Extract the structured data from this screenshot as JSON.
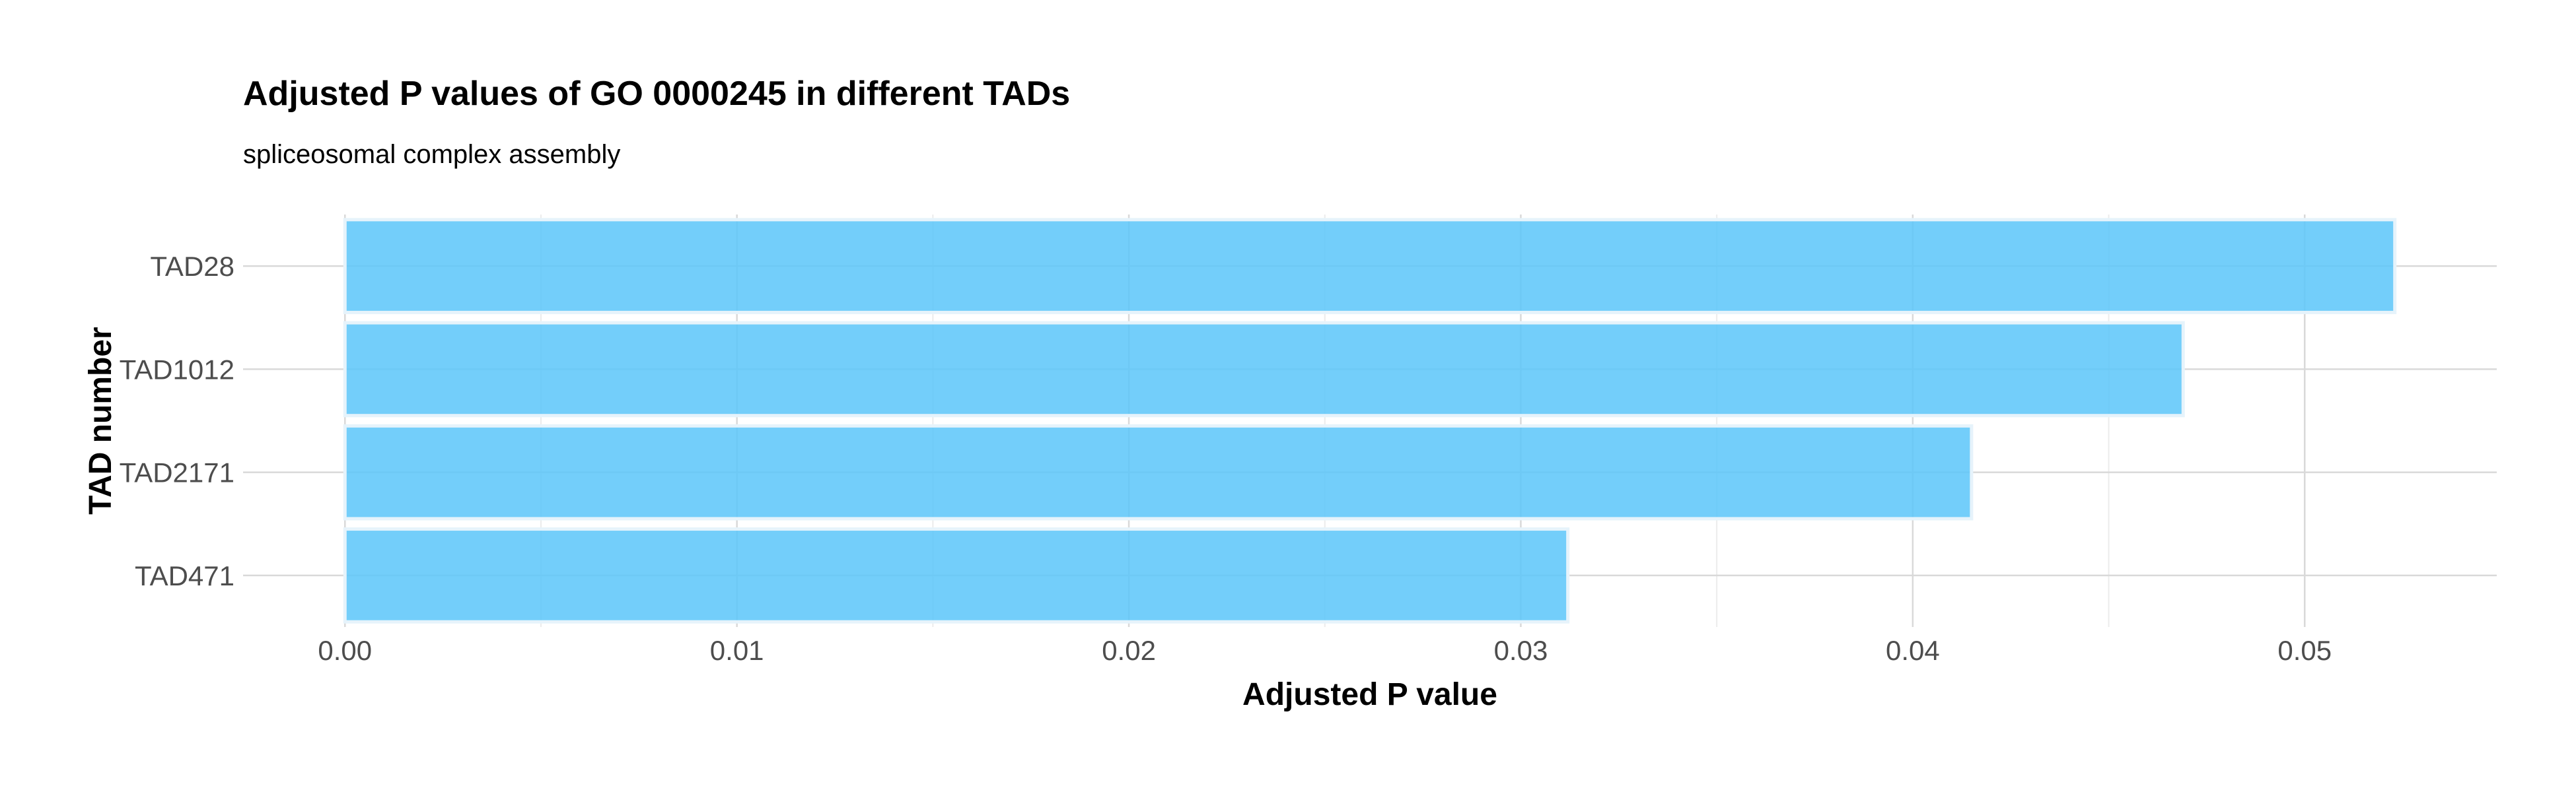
{
  "chart_data": {
    "type": "bar",
    "orientation": "horizontal",
    "title": "Adjusted P values of GO 0000245 in different TADs",
    "subtitle": "spliceosomal complex assembly",
    "xlabel": "Adjusted P value",
    "ylabel": "TAD number",
    "categories": [
      "TAD28",
      "TAD1012",
      "TAD2171",
      "TAD471"
    ],
    "values": [
      0.0523,
      0.0469,
      0.0415,
      0.0312
    ],
    "xlim": [
      -0.0026,
      0.0549
    ],
    "xticks": [
      0.0,
      0.01,
      0.02,
      0.03,
      0.04,
      0.05
    ],
    "xtick_labels": [
      "0.00",
      "0.01",
      "0.02",
      "0.03",
      "0.04",
      "0.05"
    ],
    "grid": true,
    "legend": "none",
    "colors": {
      "bar_fill": "#5bc6f9",
      "bar_edge": "#e6f3fb",
      "grid_major": "#d9d9d9",
      "grid_minor": "#ececec",
      "text": "#000000",
      "tick_text": "#4d4d4d"
    }
  }
}
